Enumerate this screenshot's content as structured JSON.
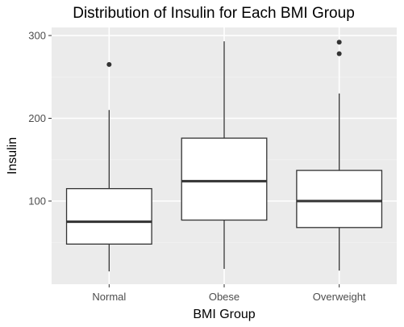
{
  "chart_data": {
    "type": "box",
    "title": "Distribution of Insulin for Each BMI Group",
    "xlabel": "BMI Group",
    "ylabel": "Insulin",
    "categories": [
      "Normal",
      "Obese",
      "Overweight"
    ],
    "ylim": [
      0,
      310
    ],
    "yticks": [
      100,
      200,
      300
    ],
    "grid": true,
    "boxes": [
      {
        "category": "Normal",
        "whisker_low": 15,
        "q1": 48,
        "median": 75,
        "q3": 115,
        "whisker_high": 210,
        "outliers": [
          265
        ]
      },
      {
        "category": "Obese",
        "whisker_low": 18,
        "q1": 77,
        "median": 124,
        "q3": 176,
        "whisker_high": 293,
        "outliers": []
      },
      {
        "category": "Overweight",
        "whisker_low": 16,
        "q1": 68,
        "median": 100,
        "q3": 137,
        "whisker_high": 230,
        "outliers": [
          278,
          292
        ]
      }
    ],
    "colors": {
      "panel": "#ebebeb",
      "grid_major": "#ffffff",
      "grid_minor": "#f4f4f4",
      "box_fill": "#ffffff",
      "box_stroke": "#333333",
      "outlier": "#333333"
    }
  }
}
